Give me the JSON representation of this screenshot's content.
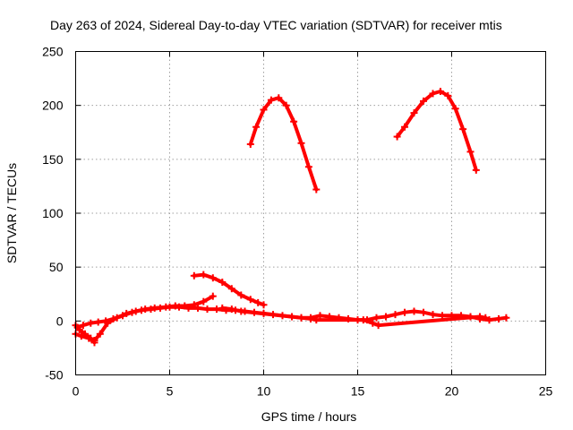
{
  "chart_data": {
    "type": "scatter",
    "title": "Day 263 of 2024, Sidereal Day-to-day VTEC variation (SDTVAR) for receiver mtis",
    "xlabel": "GPS time / hours",
    "ylabel": "SDTVAR / TECUs",
    "xlim": [
      0,
      25
    ],
    "ylim": [
      -50,
      250
    ],
    "xticks": [
      0,
      5,
      10,
      15,
      20,
      25
    ],
    "yticks": [
      -50,
      0,
      50,
      100,
      150,
      200,
      250
    ],
    "grid": true,
    "legend": "none",
    "marker_color": "#ff0000",
    "series": [
      {
        "name": "arc-high-1",
        "x": [
          9.3,
          9.6,
          10.0,
          10.4,
          10.8,
          11.2,
          11.6,
          12.0,
          12.4,
          12.8
        ],
        "y": [
          164,
          180,
          196,
          205,
          207,
          200,
          185,
          165,
          143,
          122
        ]
      },
      {
        "name": "arc-high-2",
        "x": [
          17.1,
          17.5,
          18.0,
          18.5,
          19.0,
          19.4,
          19.8,
          20.2,
          20.6,
          21.0,
          21.3
        ],
        "y": [
          171,
          180,
          193,
          204,
          211,
          213,
          209,
          197,
          178,
          157,
          140
        ]
      },
      {
        "name": "arc-mid",
        "x": [
          6.3,
          6.8,
          7.3,
          7.8,
          8.3,
          8.8,
          9.3,
          9.7,
          10.0
        ],
        "y": [
          42,
          43,
          40,
          36,
          30,
          24,
          20,
          17,
          15
        ]
      },
      {
        "name": "baseline-main",
        "x": [
          0.1,
          0.4,
          0.8,
          1.2,
          1.6,
          2.0,
          2.5,
          3.0,
          3.5,
          4.0,
          4.5,
          5.0,
          5.5,
          6.0,
          6.5,
          7.0,
          7.5,
          8.0,
          8.5,
          9.0,
          9.5,
          10.0,
          10.5,
          11.0,
          11.5,
          12.0,
          12.5,
          13.0,
          13.5,
          14.0,
          14.5,
          15.0,
          15.5,
          16.0,
          16.5,
          17.0,
          17.5,
          18.0,
          18.5,
          19.0,
          19.5,
          20.0,
          20.5,
          21.0,
          21.5,
          22.0,
          22.5,
          22.9
        ],
        "y": [
          -6,
          -4,
          -2,
          -1,
          0,
          2,
          5,
          8,
          10,
          11,
          12,
          13,
          13,
          12,
          12,
          11,
          11,
          10,
          10,
          9,
          8,
          7,
          6,
          5,
          4,
          3,
          3,
          5,
          4,
          3,
          2,
          1,
          1,
          3,
          4,
          6,
          8,
          9,
          8,
          6,
          5,
          5,
          5,
          4,
          2,
          1,
          2,
          3
        ]
      },
      {
        "name": "baseline-lower",
        "x": [
          0.0,
          0.3,
          0.7,
          1.0,
          1.3,
          1.7,
          2.2,
          2.7,
          3.2,
          3.7,
          4.2,
          4.8,
          5.3,
          5.8,
          6.3,
          6.8,
          7.3
        ],
        "y": [
          -12,
          -14,
          -16,
          -18,
          -12,
          -2,
          3,
          7,
          9,
          11,
          12,
          13,
          14,
          14,
          15,
          18,
          23
        ]
      },
      {
        "name": "baseline-dip",
        "x": [
          0.0,
          0.2,
          0.5,
          0.8,
          1.0
        ],
        "y": [
          -4,
          -8,
          -12,
          -16,
          -20
        ]
      },
      {
        "name": "baseline-segments",
        "x": [
          7.8,
          8.3,
          8.8,
          12.0,
          12.5,
          12.8,
          15.3,
          15.8,
          16.1,
          21.5,
          21.8,
          22.0
        ],
        "y": [
          12,
          11,
          9,
          3,
          2,
          1,
          1,
          -2,
          -4,
          4,
          3,
          1
        ]
      }
    ]
  }
}
